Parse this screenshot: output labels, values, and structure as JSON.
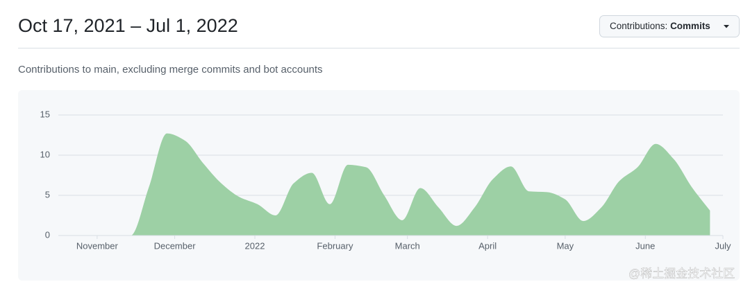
{
  "header": {
    "title": "Oct 17, 2021 – Jul 1, 2022",
    "button": {
      "label": "Contributions:",
      "value": "Commits"
    }
  },
  "subtitle": "Contributions to main, excluding merge commits and bot accounts",
  "watermark": "@稀土掘金技术社区",
  "chart_data": {
    "type": "area",
    "color": "#9dd0a5",
    "grid": true,
    "x": [
      0,
      7,
      14,
      21,
      28,
      35,
      42,
      49,
      56,
      63,
      70,
      77,
      84,
      91,
      98,
      105,
      112,
      119,
      126,
      133,
      140,
      147,
      154,
      161,
      168,
      175,
      182,
      189,
      196,
      203,
      210,
      217,
      224,
      231,
      238,
      245,
      252
    ],
    "values": [
      0,
      0,
      0,
      0,
      0,
      6,
      12.7,
      11.8,
      9,
      6.5,
      4.8,
      3.9,
      2.5,
      6.5,
      7.8,
      3.9,
      8.8,
      8.5,
      5,
      1.9,
      5.9,
      3.5,
      1.2,
      3.5,
      7,
      8.6,
      5.5,
      5.4,
      4.5,
      1.8,
      3.5,
      6.8,
      8.5,
      11.4,
      9.5,
      6,
      3.1
    ],
    "xlim": [
      0,
      257
    ],
    "xticks": [
      {
        "value": 15,
        "label": "November"
      },
      {
        "value": 45,
        "label": "December"
      },
      {
        "value": 76,
        "label": "2022"
      },
      {
        "value": 107,
        "label": "February"
      },
      {
        "value": 135,
        "label": "March"
      },
      {
        "value": 166,
        "label": "April"
      },
      {
        "value": 196,
        "label": "May"
      },
      {
        "value": 227,
        "label": "June"
      },
      {
        "value": 257,
        "label": "July"
      }
    ],
    "ylim": [
      0,
      15
    ],
    "yticks": [
      0,
      5,
      10,
      15
    ]
  }
}
